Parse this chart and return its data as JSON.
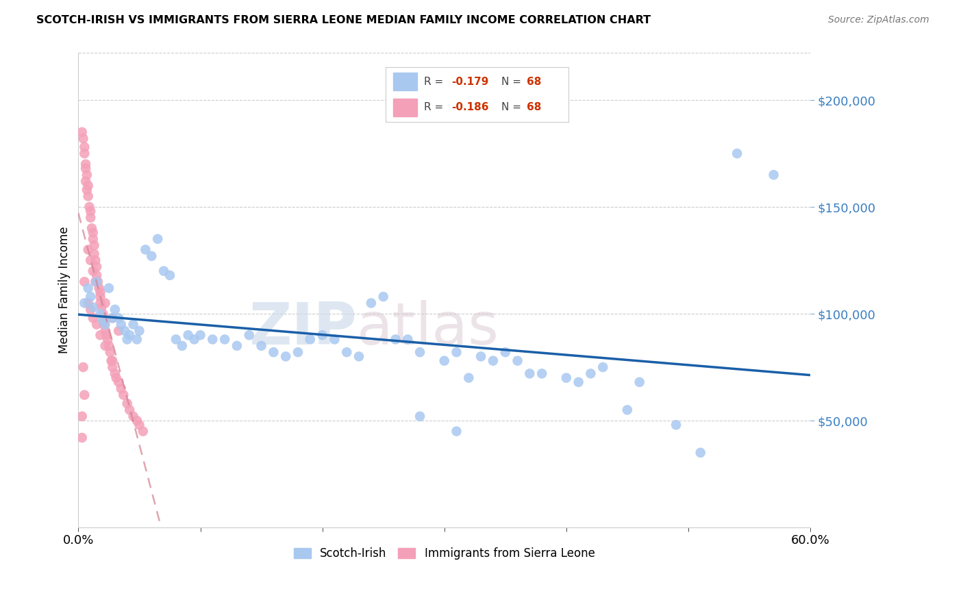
{
  "title": "SCOTCH-IRISH VS IMMIGRANTS FROM SIERRA LEONE MEDIAN FAMILY INCOME CORRELATION CHART",
  "source": "Source: ZipAtlas.com",
  "ylabel": "Median Family Income",
  "yticks": [
    50000,
    100000,
    150000,
    200000
  ],
  "ytick_labels": [
    "$50,000",
    "$100,000",
    "$150,000",
    "$200,000"
  ],
  "blue_color": "#a8c8f0",
  "pink_color": "#f4a0b8",
  "trendline_blue": "#1a5fa8",
  "trendline_pink": "#d08090",
  "watermark": "ZIPatlas",
  "xmin": 0.0,
  "xmax": 0.6,
  "ymin": 0,
  "ymax": 222000,
  "blue_x": [
    0.005,
    0.008,
    0.01,
    0.012,
    0.015,
    0.018,
    0.02,
    0.022,
    0.025,
    0.028,
    0.03,
    0.033,
    0.035,
    0.038,
    0.04,
    0.042,
    0.045,
    0.048,
    0.05,
    0.055,
    0.06,
    0.065,
    0.07,
    0.075,
    0.08,
    0.085,
    0.09,
    0.095,
    0.1,
    0.11,
    0.12,
    0.13,
    0.14,
    0.15,
    0.16,
    0.17,
    0.18,
    0.19,
    0.2,
    0.21,
    0.22,
    0.23,
    0.24,
    0.25,
    0.26,
    0.27,
    0.28,
    0.3,
    0.31,
    0.32,
    0.33,
    0.34,
    0.35,
    0.36,
    0.37,
    0.38,
    0.4,
    0.41,
    0.42,
    0.43,
    0.45,
    0.46,
    0.49,
    0.51,
    0.54,
    0.57,
    0.28,
    0.31
  ],
  "blue_y": [
    105000,
    112000,
    108000,
    103000,
    115000,
    100000,
    97000,
    95000,
    112000,
    98000,
    102000,
    98000,
    95000,
    92000,
    88000,
    90000,
    95000,
    88000,
    92000,
    130000,
    127000,
    135000,
    120000,
    118000,
    88000,
    85000,
    90000,
    88000,
    90000,
    88000,
    88000,
    85000,
    90000,
    85000,
    82000,
    80000,
    82000,
    88000,
    90000,
    88000,
    82000,
    80000,
    105000,
    108000,
    88000,
    88000,
    82000,
    78000,
    82000,
    70000,
    80000,
    78000,
    82000,
    78000,
    72000,
    72000,
    70000,
    68000,
    72000,
    75000,
    55000,
    68000,
    48000,
    35000,
    175000,
    165000,
    52000,
    45000
  ],
  "pink_x": [
    0.003,
    0.004,
    0.005,
    0.005,
    0.006,
    0.006,
    0.006,
    0.007,
    0.007,
    0.008,
    0.008,
    0.009,
    0.01,
    0.01,
    0.011,
    0.012,
    0.012,
    0.013,
    0.013,
    0.014,
    0.015,
    0.015,
    0.016,
    0.017,
    0.018,
    0.018,
    0.019,
    0.02,
    0.021,
    0.021,
    0.022,
    0.023,
    0.024,
    0.025,
    0.026,
    0.027,
    0.028,
    0.03,
    0.031,
    0.033,
    0.035,
    0.037,
    0.04,
    0.042,
    0.045,
    0.048,
    0.05,
    0.053,
    0.005,
    0.008,
    0.01,
    0.012,
    0.015,
    0.018,
    0.022,
    0.028,
    0.008,
    0.01,
    0.012,
    0.014,
    0.018,
    0.022,
    0.028,
    0.033,
    0.004,
    0.005,
    0.003,
    0.003
  ],
  "pink_y": [
    185000,
    182000,
    178000,
    175000,
    170000,
    168000,
    162000,
    165000,
    158000,
    160000,
    155000,
    150000,
    148000,
    145000,
    140000,
    138000,
    135000,
    132000,
    128000,
    125000,
    122000,
    118000,
    115000,
    112000,
    108000,
    105000,
    103000,
    100000,
    98000,
    95000,
    92000,
    90000,
    88000,
    85000,
    82000,
    78000,
    75000,
    72000,
    70000,
    68000,
    65000,
    62000,
    58000,
    55000,
    52000,
    50000,
    48000,
    45000,
    115000,
    105000,
    102000,
    98000,
    95000,
    90000,
    85000,
    78000,
    130000,
    125000,
    120000,
    115000,
    110000,
    105000,
    98000,
    92000,
    75000,
    62000,
    52000,
    42000
  ]
}
